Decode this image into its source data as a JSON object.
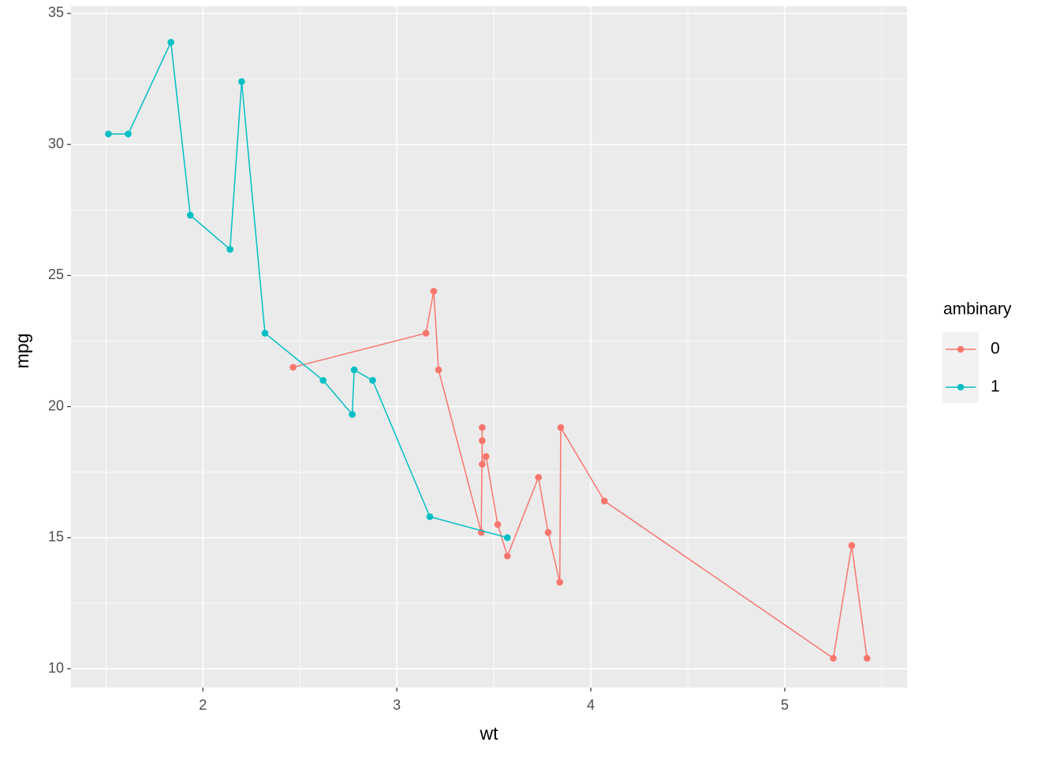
{
  "chart_data": {
    "type": "line",
    "x_label": "wt",
    "y_label": "mpg",
    "legend_title": "ambinary",
    "legend_position": "right",
    "grid": true,
    "xlim": [
      1.32,
      5.63
    ],
    "ylim": [
      9.28,
      35.27
    ],
    "xticks": [
      2,
      3,
      4,
      5
    ],
    "yticks": [
      10,
      15,
      20,
      25,
      30,
      35
    ],
    "series": [
      {
        "name": "0",
        "color": "#f8766d",
        "x": [
          2.465,
          3.15,
          3.19,
          3.215,
          3.435,
          3.44,
          3.44,
          3.44,
          3.46,
          3.52,
          3.57,
          3.73,
          3.78,
          3.84,
          3.845,
          4.07,
          5.25,
          5.345,
          5.424
        ],
        "values": [
          21.5,
          22.8,
          24.4,
          21.4,
          15.2,
          18.7,
          19.2,
          17.8,
          18.1,
          15.5,
          14.3,
          17.3,
          15.2,
          13.3,
          19.2,
          16.4,
          10.4,
          14.7,
          10.4
        ]
      },
      {
        "name": "1",
        "color": "#00bfc4",
        "x": [
          1.513,
          1.615,
          1.835,
          1.935,
          2.14,
          2.2,
          2.32,
          2.62,
          2.77,
          2.78,
          2.875,
          3.17,
          3.57
        ],
        "values": [
          30.4,
          30.4,
          33.9,
          27.3,
          26,
          32.4,
          22.8,
          21,
          19.7,
          21.4,
          21,
          15.8,
          15
        ]
      }
    ]
  }
}
